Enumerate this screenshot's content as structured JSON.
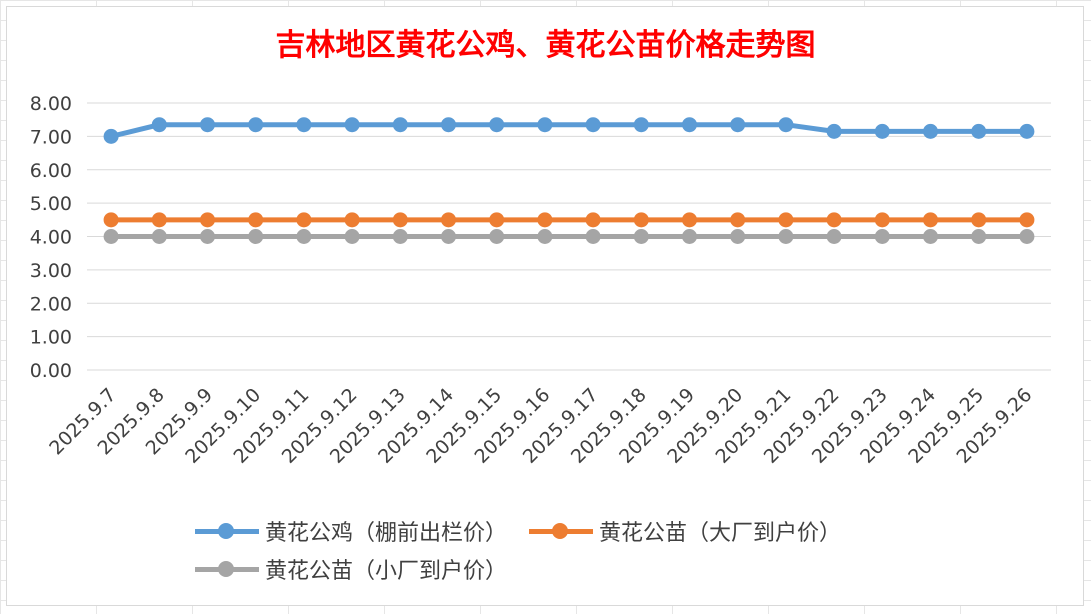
{
  "chart_data": {
    "type": "line",
    "title": "吉林地区黄花公鸡、黄花公苗价格走势图",
    "categories": [
      "2025.9.7",
      "2025.9.8",
      "2025.9.9",
      "2025.9.10",
      "2025.9.11",
      "2025.9.12",
      "2025.9.13",
      "2025.9.14",
      "2025.9.15",
      "2025.9.16",
      "2025.9.17",
      "2025.9.18",
      "2025.9.19",
      "2025.9.20",
      "2025.9.21",
      "2025.9.22",
      "2025.9.23",
      "2025.9.24",
      "2025.9.25",
      "2025.9.26"
    ],
    "series": [
      {
        "name": "黄花公鸡（棚前出栏价）",
        "color": "#5b9bd5",
        "values": [
          7.0,
          7.35,
          7.35,
          7.35,
          7.35,
          7.35,
          7.35,
          7.35,
          7.35,
          7.35,
          7.35,
          7.35,
          7.35,
          7.35,
          7.35,
          7.15,
          7.15,
          7.15,
          7.15,
          7.15
        ]
      },
      {
        "name": "黄花公苗（大厂到户价）",
        "color": "#ed7d31",
        "values": [
          4.5,
          4.5,
          4.5,
          4.5,
          4.5,
          4.5,
          4.5,
          4.5,
          4.5,
          4.5,
          4.5,
          4.5,
          4.5,
          4.5,
          4.5,
          4.5,
          4.5,
          4.5,
          4.5,
          4.5
        ]
      },
      {
        "name": "黄花公苗（小厂到户价）",
        "color": "#a5a5a5",
        "values": [
          4.0,
          4.0,
          4.0,
          4.0,
          4.0,
          4.0,
          4.0,
          4.0,
          4.0,
          4.0,
          4.0,
          4.0,
          4.0,
          4.0,
          4.0,
          4.0,
          4.0,
          4.0,
          4.0,
          4.0
        ]
      }
    ],
    "y_ticks": [
      "0.00",
      "1.00",
      "2.00",
      "3.00",
      "4.00",
      "5.00",
      "6.00",
      "7.00",
      "8.00"
    ],
    "ylim": [
      0,
      8
    ],
    "grid": true,
    "legend_position": "bottom"
  }
}
